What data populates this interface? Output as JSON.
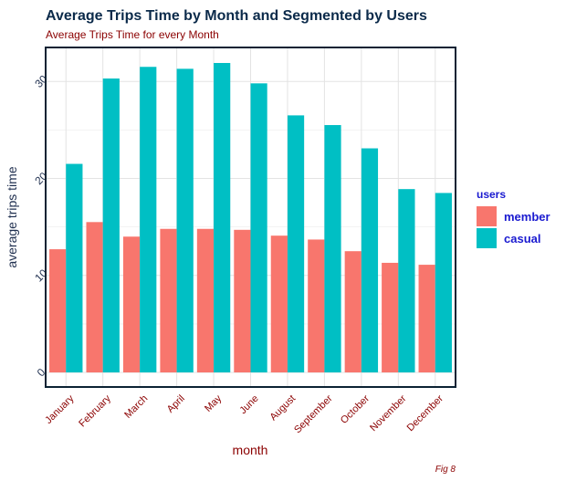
{
  "chart_data": {
    "type": "bar",
    "title": "Average Trips Time by Month and Segmented by Users",
    "subtitle": "Average Trips Time for every Month",
    "xlabel": "month",
    "ylabel": "average trips time",
    "caption": "Fig 8",
    "categories": [
      "January",
      "February",
      "March",
      "April",
      "May",
      "June",
      "August",
      "September",
      "October",
      "November",
      "December"
    ],
    "series": [
      {
        "name": "member",
        "color": "#F8766D",
        "values": [
          12.7,
          15.5,
          14.0,
          14.8,
          14.8,
          14.7,
          14.1,
          13.7,
          12.5,
          11.3,
          11.1
        ]
      },
      {
        "name": "casual",
        "color": "#00BFC4",
        "values": [
          21.5,
          30.3,
          31.5,
          31.3,
          31.9,
          29.8,
          26.5,
          25.5,
          23.1,
          18.9,
          18.5
        ]
      }
    ],
    "legend": {
      "title": "users",
      "position": "right"
    },
    "ylim": [
      -1.5,
      33.5
    ],
    "yticks": [
      0,
      10,
      20,
      30
    ],
    "grid": true
  }
}
